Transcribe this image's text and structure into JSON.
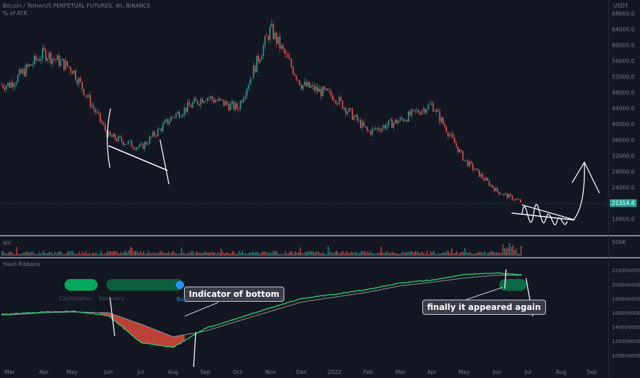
{
  "header": {
    "symbol_line": "Bitcoin / TetherUS PERPETUAL FUTURES, 4h, BINANCE",
    "atr_label": "% of ATR",
    "currency": "USDT",
    "volume_label": "Vol",
    "indicator_label": "Hash Ribbons"
  },
  "annotations": {
    "bottom_callout": "Indicator of bottom",
    "again_callout": "finally it appeared again",
    "buy_label": "Buy",
    "capitulation_label": "Capitulation",
    "recovery_label": "Recovery"
  },
  "current_price": "21314.4",
  "colors": {
    "up": "#26a69a",
    "down": "#ef5350",
    "hash_fast": "#2ecc71",
    "hash_slow": "#9598a1",
    "capitulation_fill": "#e74c3c",
    "signal_green": "#00e676",
    "buy_blue": "#2196f3"
  },
  "chart_data": [
    {
      "type": "line",
      "title": "Bitcoin / TetherUS PERPETUAL FUTURES, 4h, BINANCE",
      "series": [
        {
          "name": "",
          "x": [
            "Mar",
            "Apr",
            "May",
            "Jun",
            "Jul",
            "Aug",
            "Sep",
            "Oct",
            "Nov",
            "Dec",
            "2022",
            "Feb",
            "Mar",
            "Apr",
            "May",
            "Jun",
            "Jul"
          ],
          "values": [
            50000,
            58000,
            54000,
            37000,
            34000,
            42000,
            47000,
            44000,
            64000,
            50000,
            47000,
            38000,
            41000,
            45000,
            31000,
            23000,
            19500
          ]
        }
      ],
      "yticks": [
        "68000.0",
        "64000.0",
        "60000.0",
        "56000.0",
        "52000.0",
        "48000.0",
        "44000.0",
        "40000.0",
        "36000.0",
        "32000.0",
        "28000.0",
        "24000.0",
        "20000.0",
        "16000.0"
      ],
      "ylim": [
        13000,
        70000
      ]
    },
    {
      "type": "bar",
      "title": "Vol",
      "yticks": [
        "500K"
      ]
    },
    {
      "type": "line",
      "title": "Hash Ribbons",
      "series": [
        {
          "name": "",
          "x": [
            "Mar",
            "Apr",
            "May",
            "Jun",
            "Jul",
            "Aug",
            "Sep",
            "Oct",
            "Nov",
            "Dec",
            "2022",
            "Feb",
            "Mar",
            "Apr",
            "May",
            "Jun",
            "Jul"
          ],
          "values": [
            158,
            161,
            162,
            156,
            118,
            111,
            138,
            152,
            167,
            180,
            186,
            193,
            202,
            206,
            214,
            216,
            213
          ]
        },
        {
          "name": "",
          "x": [
            "Mar",
            "Apr",
            "May",
            "Jun",
            "Jul",
            "Aug",
            "Sep",
            "Oct",
            "Nov",
            "Dec",
            "2022",
            "Feb",
            "Mar",
            "Apr",
            "May",
            "Jun",
            "Jul"
          ],
          "values": [
            157,
            160,
            161,
            160,
            144,
            126,
            134,
            148,
            162,
            175,
            182,
            189,
            198,
            203,
            209,
            213,
            213
          ]
        }
      ],
      "yticks": [
        "220000000.0",
        "200000000.0",
        "180000000.0",
        "160000000.0",
        "140000000.0",
        "120000000.0",
        "100000000.0"
      ],
      "ylim": [
        95,
        225
      ]
    }
  ],
  "xaxis": [
    "Mar",
    "Apr",
    "May",
    "Jun",
    "Jul",
    "Aug",
    "Sep",
    "Oct",
    "Nov",
    "Dec",
    "2022",
    "Feb",
    "Mar",
    "Apr",
    "May",
    "Jun",
    "Jul",
    "Aug",
    "Sep"
  ]
}
